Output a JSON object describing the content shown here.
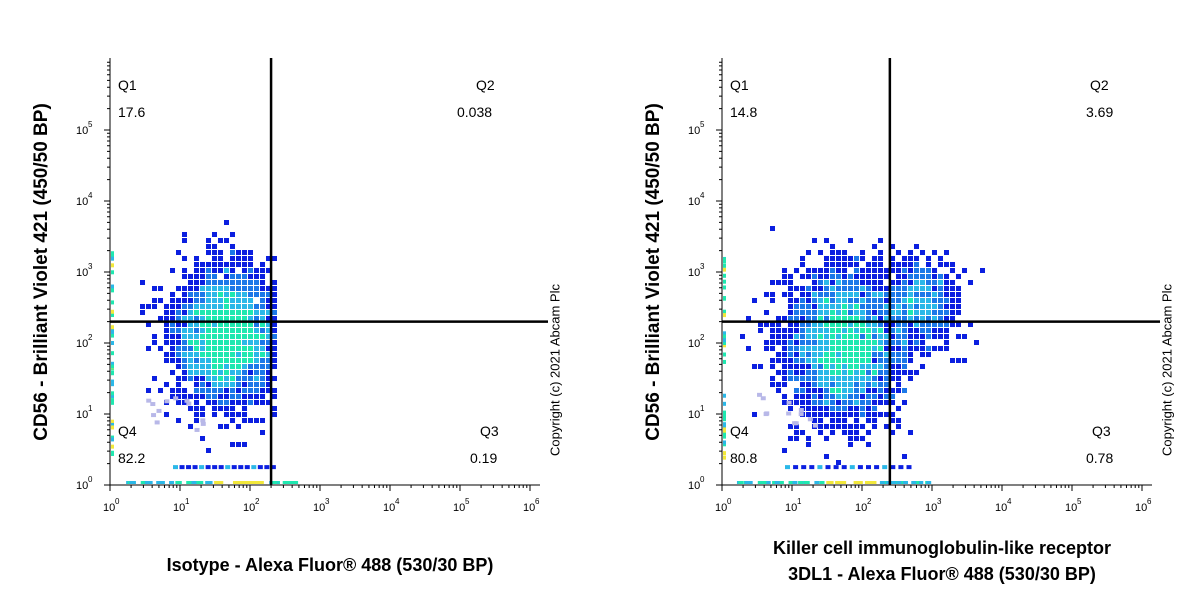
{
  "chart_data": [
    {
      "type": "scatter",
      "subtype": "flow-cytometry-density-plot",
      "xlabel": "Isotype - Alexa Fluor® 488 (530/30 BP)",
      "xlabel_lines": [
        "Isotype - Alexa Fluor® 488 (530/30 BP)"
      ],
      "ylabel": "CD56 - Brilliant Violet 421 (450/50 BP)",
      "x_scale": "log",
      "y_scale": "log",
      "xlim": [
        1,
        1000000
      ],
      "ylim": [
        1,
        1000000
      ],
      "x_ticks": [
        "10^0",
        "10^1",
        "10^2",
        "10^3",
        "10^4",
        "10^5",
        "10^6"
      ],
      "y_ticks": [
        "10^0",
        "10^1",
        "10^2",
        "10^3",
        "10^4",
        "10^5"
      ],
      "gate_x": 200,
      "gate_y": 200,
      "quadrants": [
        {
          "name": "Q1",
          "value": "17.6"
        },
        {
          "name": "Q2",
          "value": "0.038"
        },
        {
          "name": "Q3",
          "value": "0.19"
        },
        {
          "name": "Q4",
          "value": "82.2"
        }
      ],
      "population": {
        "x_center_log": 1.65,
        "x_spread_log": 0.35,
        "y_center_log": 2.1,
        "y_spread_log": 0.45,
        "x_max_log": 2.35
      },
      "copyright": "Copyright (c) 2021 Abcam Plc"
    },
    {
      "type": "scatter",
      "subtype": "flow-cytometry-density-plot",
      "xlabel": "Killer cell immunoglobulin-like receptor 3DL1 - Alexa Fluor® 488 (530/30 BP)",
      "xlabel_lines": [
        "Killer cell immunoglobulin-like receptor",
        "3DL1 - Alexa Fluor® 488 (530/30 BP)"
      ],
      "ylabel": "CD56 - Brilliant Violet 421 (450/50 BP)",
      "x_scale": "log",
      "y_scale": "log",
      "xlim": [
        1,
        1000000
      ],
      "ylim": [
        1,
        1000000
      ],
      "x_ticks": [
        "10^0",
        "10^1",
        "10^2",
        "10^3",
        "10^4",
        "10^5",
        "10^6"
      ],
      "y_ticks": [
        "10^0",
        "10^1",
        "10^2",
        "10^3",
        "10^4",
        "10^5"
      ],
      "gate_x": 250,
      "gate_y": 200,
      "quadrants": [
        {
          "name": "Q1",
          "value": "14.8"
        },
        {
          "name": "Q2",
          "value": "3.69"
        },
        {
          "name": "Q3",
          "value": "0.78"
        },
        {
          "name": "Q4",
          "value": "80.8"
        }
      ],
      "population": {
        "x_center_log": 1.75,
        "x_spread_log": 0.4,
        "y_center_log": 2.0,
        "y_spread_log": 0.5,
        "x_max_log": 2.7,
        "secondary": {
          "x_center_log": 2.85,
          "x_spread_log": 0.25,
          "y_center_log": 2.55,
          "y_spread_log": 0.3
        }
      },
      "copyright": "Copyright (c) 2021 Abcam Plc"
    }
  ],
  "colors": {
    "density_low": "#0b1fe0",
    "density_mid": "#2bb8e8",
    "density_high": "#1fe8b0",
    "density_peak": "#f2e83a",
    "sparse": "#b8b8e8",
    "axis": "#000000"
  }
}
